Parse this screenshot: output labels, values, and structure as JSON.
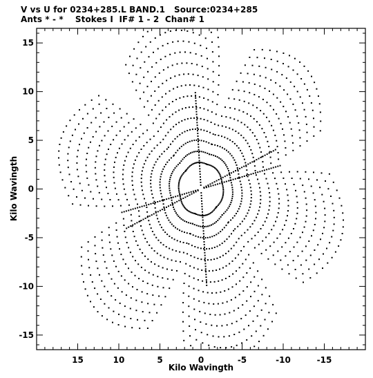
{
  "chart_data": {
    "type": "scatter",
    "title": "V vs U for 0234+285.L BAND.1   Source:0234+285",
    "subtitle": "Ants * - *    Stokes I  IF# 1 - 2  Chan# 1",
    "xlabel": "Kilo Wavingth",
    "ylabel": "Kilo Wavingth",
    "xlim": [
      20,
      -20
    ],
    "ylim": [
      -16.5,
      16.5
    ],
    "x_direction": "decreasing-right",
    "xticks": [
      15,
      10,
      5,
      0,
      -5,
      -10,
      -15
    ],
    "xtick_labels": [
      "15",
      "10",
      "5",
      "0",
      "-5",
      "-10",
      "-15"
    ],
    "yticks": [
      15,
      10,
      5,
      0,
      -5,
      -10,
      -15
    ],
    "ytick_labels": [
      "15",
      "10",
      "5",
      "0",
      "-5",
      "-10",
      "-15"
    ],
    "grid": false,
    "legend": "none",
    "marker_color": "#000000",
    "pattern": {
      "description": "uv-coverage: six-armed star of elliptical point tracks, point-symmetric about origin",
      "arm_angles_deg": [
        16,
        76,
        136,
        196,
        256,
        316
      ],
      "arm_max_radius": 17.8,
      "tracks_per_arm": 14,
      "points_per_track": 18,
      "radial_spoke_angles_deg": [
        -14,
        86,
        156
      ],
      "radial_spoke_max_radius": [
        10,
        10,
        10
      ]
    }
  }
}
